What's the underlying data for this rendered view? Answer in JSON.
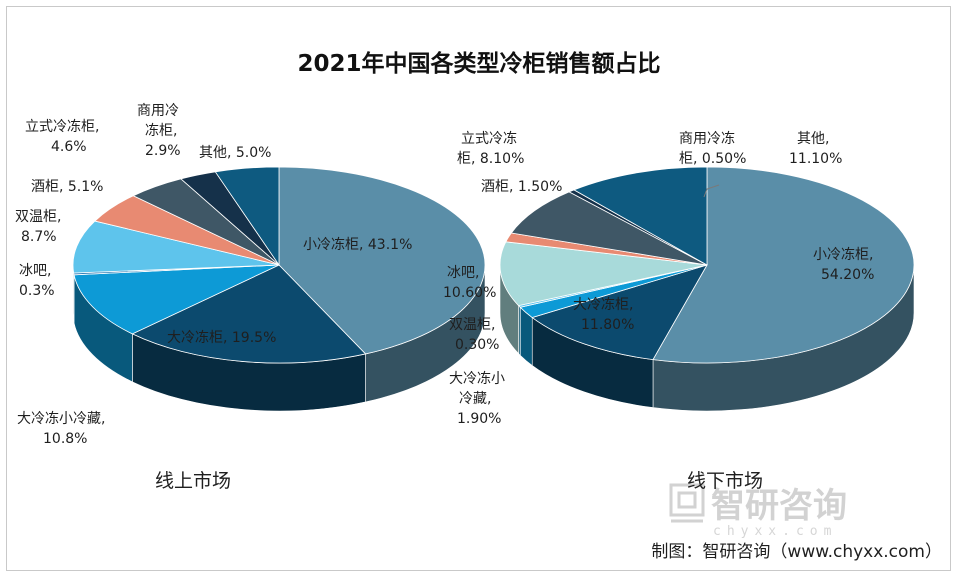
{
  "chart_data": [
    {
      "type": "pie",
      "title": "2021年中国各类型冷柜销售额占比",
      "subtitle": "线上市场",
      "slices": [
        {
          "label": "小冷冻柜, 43.1%",
          "value": 43.1,
          "color": "#5a8ea8"
        },
        {
          "label": "大冷冻柜, 19.5%",
          "value": 19.5,
          "color": "#0c4a6e"
        },
        {
          "label": "大冷冻小冷藏, 10.8%",
          "value": 10.8,
          "color": "#0d9ad6"
        },
        {
          "label": "冰吧, 0.3%",
          "value": 0.3,
          "color": "#2c7bb5"
        },
        {
          "label": "双温柜, 8.7%",
          "value": 8.7,
          "color": "#5ec4ec"
        },
        {
          "label": "酒柜, 5.1%",
          "value": 5.1,
          "color": "#e88a72"
        },
        {
          "label": "立式冷冻柜, 4.6%",
          "value": 4.6,
          "color": "#3f5766"
        },
        {
          "label": "商用冷冻柜, 2.9%",
          "value": 2.9,
          "color": "#15314a"
        },
        {
          "label": "其他, 5.0%",
          "value": 5.0,
          "color": "#0e5a80"
        }
      ]
    },
    {
      "type": "pie",
      "subtitle": "线下市场",
      "slices": [
        {
          "label": "小冷冻柜, 54.20%",
          "value": 54.2,
          "color": "#5a8ea8"
        },
        {
          "label": "大冷冻柜, 11.80%",
          "value": 11.8,
          "color": "#0c4a6e"
        },
        {
          "label": "大冷冻小冷藏, 1.90%",
          "value": 1.9,
          "color": "#0d9ad6"
        },
        {
          "label": "双温柜, 0.30%",
          "value": 0.3,
          "color": "#5ec4ec"
        },
        {
          "label": "冰吧, 10.60%",
          "value": 10.6,
          "color": "#a8dada"
        },
        {
          "label": "酒柜, 1.50%",
          "value": 1.5,
          "color": "#e88a72"
        },
        {
          "label": "立式冷冻柜, 8.10%",
          "value": 8.1,
          "color": "#3f5766"
        },
        {
          "label": "商用冷冻柜, 0.50%",
          "value": 0.5,
          "color": "#15314a"
        },
        {
          "label": "其他, 11.10%",
          "value": 11.1,
          "color": "#0e5a80"
        }
      ]
    }
  ],
  "labels": {
    "left": {
      "xiaolengdonggui": [
        "小冷冻柜, 43.1%"
      ],
      "dalengdonggui": [
        "大冷冻柜, 19.5%"
      ],
      "dalengdong_xiaolengcang": [
        "大冷冻小冷藏,",
        "10.8%"
      ],
      "bingba": [
        "冰吧,",
        "0.3%"
      ],
      "shuangwengui": [
        "双温柜,",
        "8.7%"
      ],
      "jiugui": [
        "酒柜, 5.1%"
      ],
      "lishi": [
        "立式冷冻柜,",
        "4.6%"
      ],
      "shangyong": [
        "商用冷",
        "冻柜,",
        "2.9%"
      ],
      "qita": [
        "其他, 5.0%"
      ]
    },
    "right": {
      "xiaolengdonggui": [
        "小冷冻柜,",
        "54.20%"
      ],
      "dalengdonggui": [
        "大冷冻柜,",
        "11.80%"
      ],
      "dalengdong_xiaolengcang": [
        "大冷冻小",
        "冷藏,",
        "1.90%"
      ],
      "shuangwengui": [
        "双温柜,",
        "0.30%"
      ],
      "bingba": [
        "冰吧,",
        "10.60%"
      ],
      "jiugui": [
        "酒柜, 1.50%"
      ],
      "lishi": [
        "立式冷冻",
        "柜, 8.10%"
      ],
      "shangyong": [
        "商用冷冻",
        "柜, 0.50%"
      ],
      "qita": [
        "其他,",
        "11.10%"
      ]
    }
  },
  "watermark": {
    "text": "智研咨询",
    "sub": "chyxx.com"
  },
  "source": "制图：智研咨询（www.chyxx.com）"
}
